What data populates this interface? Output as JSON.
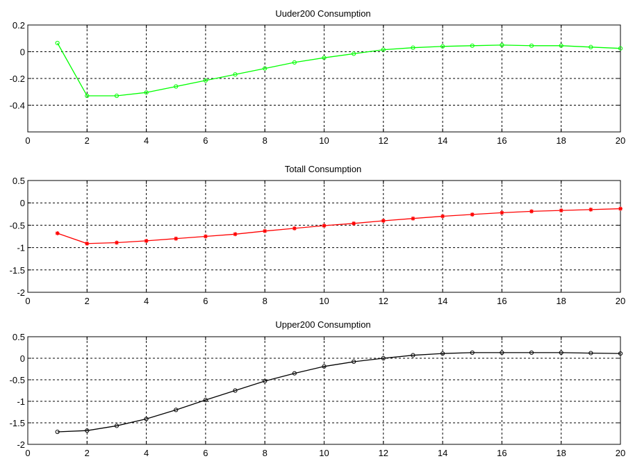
{
  "chart_data": [
    {
      "type": "line",
      "title": "Uuder200 Consumption",
      "xlabel": "",
      "ylabel": "",
      "xlim": [
        0,
        20
      ],
      "ylim": [
        -0.6,
        0.2
      ],
      "xticks": [
        0,
        2,
        4,
        6,
        8,
        10,
        12,
        14,
        16,
        18,
        20
      ],
      "yticks": [
        -0.4,
        -0.2,
        0,
        0.2
      ],
      "xtick_labels": [
        "0",
        "2",
        "4",
        "6",
        "8",
        "10",
        "12",
        "14",
        "16",
        "18",
        "20"
      ],
      "ytick_labels": [
        "-0.4",
        "-0.2",
        "0",
        "0.2"
      ],
      "grid": true,
      "color": "#00ff00",
      "marker": "circle",
      "series": [
        {
          "x": [
            1,
            2,
            3,
            4,
            5,
            6,
            7,
            8,
            9,
            10,
            11,
            12,
            13,
            14,
            15,
            16,
            17,
            18,
            19,
            20
          ],
          "values": [
            0.065,
            -0.33,
            -0.33,
            -0.305,
            -0.26,
            -0.215,
            -0.17,
            -0.125,
            -0.08,
            -0.045,
            -0.015,
            0.015,
            0.03,
            0.04,
            0.045,
            0.05,
            0.045,
            0.045,
            0.035,
            0.025
          ]
        }
      ]
    },
    {
      "type": "line",
      "title": "Totall Consumption",
      "xlabel": "",
      "ylabel": "",
      "xlim": [
        0,
        20
      ],
      "ylim": [
        -2,
        0.5
      ],
      "xticks": [
        0,
        2,
        4,
        6,
        8,
        10,
        12,
        14,
        16,
        18,
        20
      ],
      "yticks": [
        -2,
        -1.5,
        -1,
        -0.5,
        0,
        0.5
      ],
      "xtick_labels": [
        "0",
        "2",
        "4",
        "6",
        "8",
        "10",
        "12",
        "14",
        "16",
        "18",
        "20"
      ],
      "ytick_labels": [
        "-2",
        "-1.5",
        "-1",
        "-0.5",
        "0",
        "0.5"
      ],
      "grid": true,
      "color": "#ff0000",
      "marker": "star",
      "series": [
        {
          "x": [
            1,
            2,
            3,
            4,
            5,
            6,
            7,
            8,
            9,
            10,
            11,
            12,
            13,
            14,
            15,
            16,
            17,
            18,
            19,
            20
          ],
          "values": [
            -0.68,
            -0.91,
            -0.89,
            -0.85,
            -0.8,
            -0.75,
            -0.7,
            -0.63,
            -0.57,
            -0.51,
            -0.46,
            -0.4,
            -0.35,
            -0.3,
            -0.26,
            -0.22,
            -0.19,
            -0.17,
            -0.15,
            -0.13
          ]
        }
      ]
    },
    {
      "type": "line",
      "title": "Upper200 Consumption",
      "xlabel": "",
      "ylabel": "",
      "xlim": [
        0,
        20
      ],
      "ylim": [
        -2,
        0.5
      ],
      "xticks": [
        0,
        2,
        4,
        6,
        8,
        10,
        12,
        14,
        16,
        18,
        20
      ],
      "yticks": [
        -2,
        -1.5,
        -1,
        -0.5,
        0,
        0.5
      ],
      "xtick_labels": [
        "0",
        "2",
        "4",
        "6",
        "8",
        "10",
        "12",
        "14",
        "16",
        "18",
        "20"
      ],
      "ytick_labels": [
        "-2",
        "-1.5",
        "-1",
        "-0.5",
        "0",
        "0.5"
      ],
      "grid": true,
      "color": "#000000",
      "marker": "circle",
      "series": [
        {
          "x": [
            1,
            2,
            3,
            4,
            5,
            6,
            7,
            8,
            9,
            10,
            11,
            12,
            13,
            14,
            15,
            16,
            17,
            18,
            19,
            20
          ],
          "values": [
            -1.71,
            -1.68,
            -1.57,
            -1.41,
            -1.2,
            -0.97,
            -0.75,
            -0.53,
            -0.35,
            -0.19,
            -0.08,
            0.0,
            0.07,
            0.11,
            0.13,
            0.13,
            0.13,
            0.13,
            0.12,
            0.11
          ]
        }
      ]
    }
  ]
}
